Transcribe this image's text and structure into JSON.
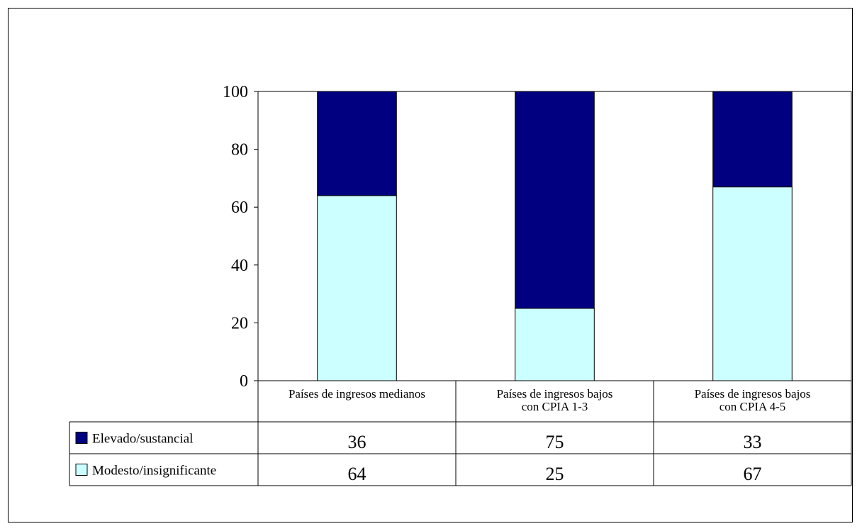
{
  "chart_data": {
    "type": "bar",
    "stacked": true,
    "title": "",
    "xlabel": "",
    "ylabel": "",
    "ylim": [
      0,
      100
    ],
    "yticks": [
      0,
      20,
      40,
      60,
      80,
      100
    ],
    "categories": [
      [
        "Países de ingresos medianos"
      ],
      [
        "Países de ingresos bajos",
        "con CPIA 1-3"
      ],
      [
        "Países de ingresos bajos",
        "con CPIA 4-5"
      ]
    ],
    "series": [
      {
        "name": "Modesto/insignificante",
        "color": "#ccffff",
        "values": [
          64,
          25,
          67
        ]
      },
      {
        "name": "Elevado/sustancial",
        "color": "#000080",
        "values": [
          36,
          75,
          33
        ]
      }
    ],
    "data_table": {
      "row_order": [
        1,
        0
      ]
    }
  }
}
